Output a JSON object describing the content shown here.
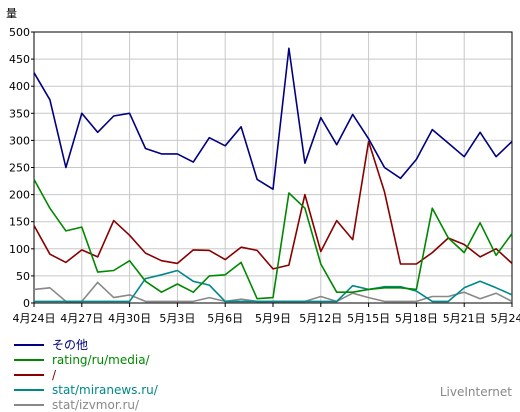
{
  "chart_data": {
    "type": "line",
    "ylabel": "量",
    "ylim": [
      0,
      500
    ],
    "yticks": [
      0,
      50,
      100,
      150,
      200,
      250,
      300,
      350,
      400,
      450,
      500
    ],
    "xticks": [
      "4月24日",
      "4月27日",
      "4月30日",
      "5月3日",
      "5月6日",
      "5月9日",
      "5月12日",
      "5月15日",
      "5月18日",
      "5月21日",
      "5月24日"
    ],
    "x_count": 31,
    "grid": true,
    "legend_position": "bottom-left",
    "series": [
      {
        "name": "その他",
        "color": "#000080",
        "values": [
          425,
          375,
          250,
          350,
          315,
          345,
          350,
          285,
          275,
          275,
          260,
          305,
          290,
          325,
          228,
          210,
          470,
          258,
          342,
          292,
          348,
          303,
          250,
          230,
          265,
          320,
          295,
          270,
          315,
          270,
          298
        ]
      },
      {
        "name": "rating/ru/media/",
        "color": "#008800",
        "values": [
          228,
          175,
          133,
          140,
          57,
          60,
          78,
          40,
          20,
          35,
          20,
          50,
          52,
          75,
          8,
          10,
          203,
          175,
          72,
          20,
          20,
          25,
          28,
          28,
          25,
          175,
          120,
          93,
          148,
          88,
          128
        ]
      },
      {
        "name": "/",
        "color": "#880000",
        "values": [
          143,
          90,
          75,
          98,
          85,
          152,
          125,
          92,
          78,
          73,
          98,
          97,
          80,
          103,
          97,
          63,
          70,
          200,
          95,
          152,
          117,
          298,
          205,
          72,
          72,
          93,
          120,
          108,
          85,
          100,
          73
        ]
      },
      {
        "name": "stat/miranews.ru/",
        "color": "#008888",
        "values": [
          3,
          3,
          3,
          3,
          3,
          3,
          3,
          45,
          52,
          60,
          40,
          33,
          3,
          3,
          3,
          3,
          3,
          3,
          3,
          3,
          32,
          25,
          30,
          30,
          22,
          3,
          3,
          28,
          40,
          28,
          15
        ]
      },
      {
        "name": "stat/izvmor.ru/",
        "color": "#888888",
        "values": [
          25,
          28,
          3,
          3,
          38,
          10,
          15,
          3,
          3,
          3,
          3,
          10,
          3,
          7,
          3,
          3,
          3,
          3,
          12,
          3,
          18,
          10,
          3,
          3,
          3,
          12,
          12,
          20,
          8,
          18,
          3
        ]
      }
    ]
  },
  "credit": "LiveInternet"
}
